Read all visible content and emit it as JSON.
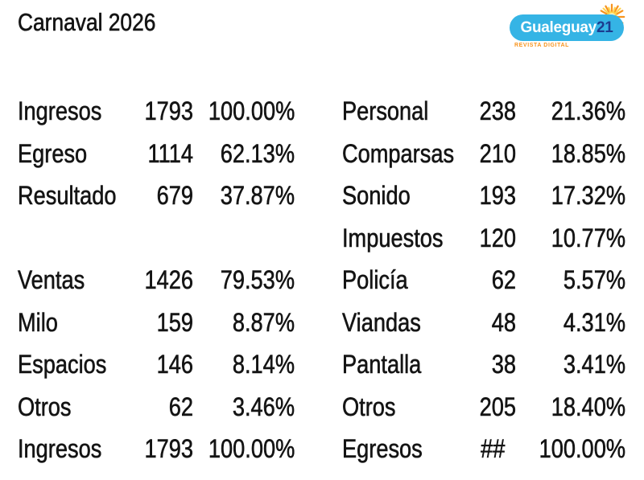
{
  "page": {
    "title": "Carnaval 2026",
    "background_color": "#ffffff",
    "text_color": "#141414"
  },
  "logo": {
    "name": "gualeguay21-logo",
    "text_main": "Gualeguay",
    "text_suffix": "21",
    "tagline": "REVISTA DIGITAL",
    "colors": {
      "blob": "#35b4e5",
      "main_text": "#ffffff",
      "suffix_text": "#1c3c8f",
      "tagline": "#f7941e",
      "sun_rays": "#f7941e",
      "sun_core": "#ffd34d"
    }
  },
  "chart_data": {
    "type": "table",
    "title": "Carnaval 2026",
    "layout": "two tables side by side, columns: label / value / percent, no gridlines, white background",
    "left_table": {
      "rows": [
        {
          "label": "Ingresos",
          "value": "1793",
          "percent": "100.00%"
        },
        {
          "label": "Egreso",
          "value": "1114",
          "percent": "62.13%"
        },
        {
          "label": "Resultado",
          "value": "679",
          "percent": "37.87%"
        },
        {
          "label": "",
          "value": "",
          "percent": ""
        },
        {
          "label": "Ventas",
          "value": "1426",
          "percent": "79.53%"
        },
        {
          "label": "Milo",
          "value": "159",
          "percent": "8.87%"
        },
        {
          "label": "Espacios",
          "value": "146",
          "percent": "8.14%"
        },
        {
          "label": "Otros",
          "value": "62",
          "percent": "3.46%"
        },
        {
          "label": "Ingresos",
          "value": "1793",
          "percent": "100.00%"
        }
      ]
    },
    "right_table": {
      "rows": [
        {
          "label": "Personal",
          "value": "238",
          "percent": "21.36%"
        },
        {
          "label": "Comparsas",
          "value": "210",
          "percent": "18.85%"
        },
        {
          "label": "Sonido",
          "value": "193",
          "percent": "17.32%"
        },
        {
          "label": "Impuestos",
          "value": "120",
          "percent": "10.77%"
        },
        {
          "label": "Policía",
          "value": "62",
          "percent": "5.57%"
        },
        {
          "label": "Viandas",
          "value": "48",
          "percent": "4.31%"
        },
        {
          "label": "Pantalla",
          "value": "38",
          "percent": "3.41%"
        },
        {
          "label": "Otros",
          "value": "205",
          "percent": "18.40%"
        },
        {
          "label": "Egresos",
          "value": "##",
          "percent": "100.00%"
        }
      ]
    }
  }
}
